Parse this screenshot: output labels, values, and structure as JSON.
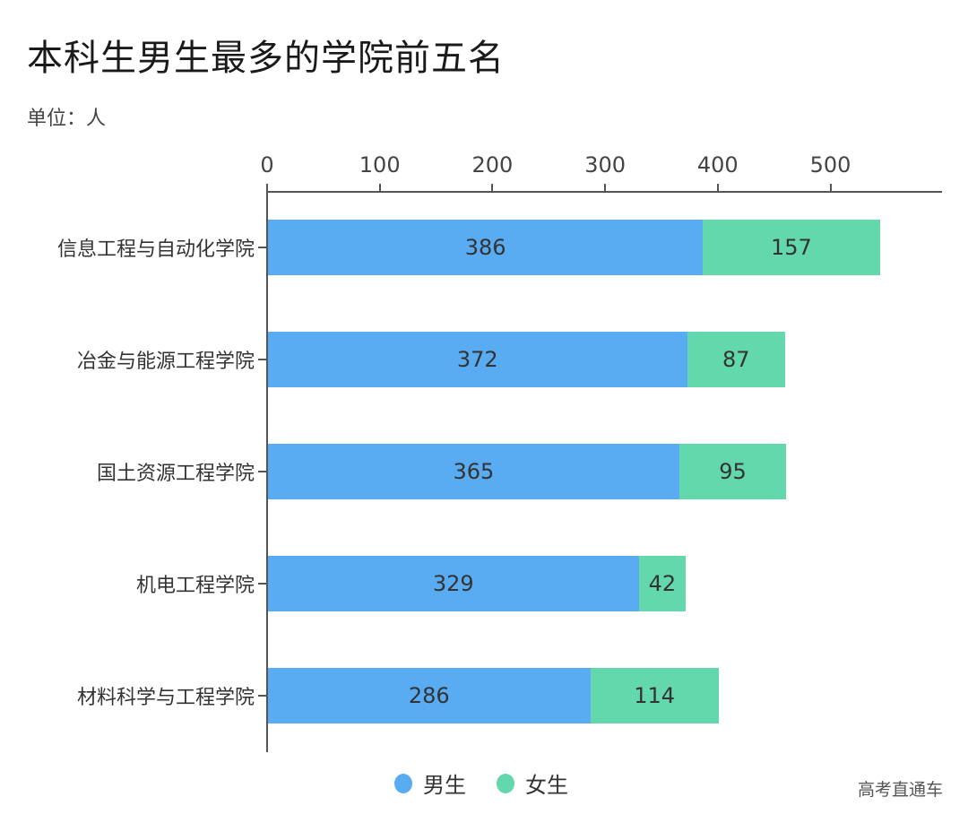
{
  "title": "本科生男生最多的学院前五名",
  "unit": "单位：人",
  "watermark": "高考直通车",
  "colors": {
    "male": "#5aacf2",
    "female": "#62d8ac"
  },
  "legend": [
    {
      "label": "男生",
      "color": "#5aacf2"
    },
    {
      "label": "女生",
      "color": "#62d8ac"
    }
  ],
  "chart_data": {
    "type": "bar",
    "orientation": "horizontal",
    "stacked": true,
    "title": "本科生男生最多的学院前五名",
    "subtitle": "单位：人",
    "xlabel": "",
    "ylabel": "",
    "xlim": [
      0,
      600
    ],
    "x_ticks": [
      "0",
      "100",
      "200",
      "300",
      "400",
      "500"
    ],
    "x_axis_position": "top",
    "grid": false,
    "legend_position": "bottom",
    "categories": [
      "信息工程与自动化学院",
      "冶金与能源工程学院",
      "国土资源工程学院",
      "机电工程学院",
      "材料科学与工程学院"
    ],
    "series": [
      {
        "name": "男生",
        "color": "#5aacf2",
        "values": [
          386,
          372,
          365,
          329,
          286
        ]
      },
      {
        "name": "女生",
        "color": "#62d8ac",
        "values": [
          157,
          87,
          95,
          42,
          114
        ]
      }
    ],
    "data_labels": true
  }
}
